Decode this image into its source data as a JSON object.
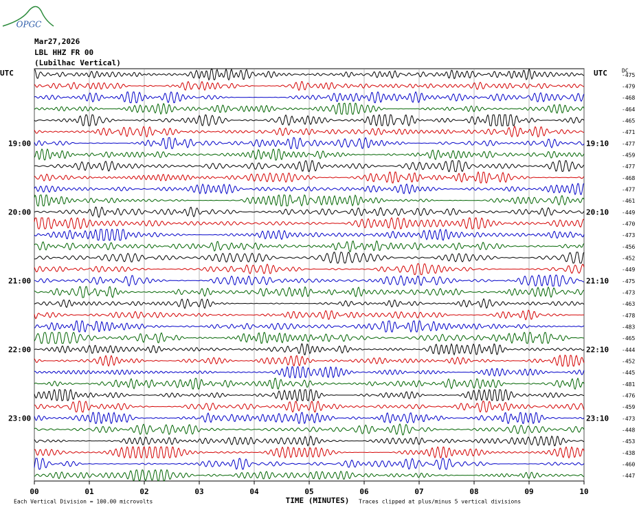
{
  "logo": "OPGC",
  "header": {
    "date": "Mar27,2026",
    "station": "LBL HHZ FR 00",
    "location": "(Lubilhac Vertical)"
  },
  "left_axis": {
    "title": "UTC",
    "labels": [
      {
        "row": 6,
        "label": "19:00"
      },
      {
        "row": 12,
        "label": "20:00"
      },
      {
        "row": 18,
        "label": "21:00"
      },
      {
        "row": 24,
        "label": "22:00"
      },
      {
        "row": 30,
        "label": "23:00"
      }
    ]
  },
  "right_axis": {
    "title": "UTC",
    "offset_title": "DC",
    "labels": [
      {
        "row": 6,
        "label": "19:10"
      },
      {
        "row": 12,
        "label": "20:10"
      },
      {
        "row": 18,
        "label": "21:10"
      },
      {
        "row": 24,
        "label": "22:10"
      },
      {
        "row": 30,
        "label": "23:10"
      }
    ],
    "offsets": [
      "-475",
      "-479",
      "-468",
      "-464",
      "-465",
      "-471",
      "-477",
      "-459",
      "-477",
      "-468",
      "-477",
      "-461",
      "-449",
      "-470",
      "-473",
      "-456",
      "-452",
      "-449",
      "-475",
      "-473",
      "-463",
      "-478",
      "-483",
      "-465",
      "-444",
      "-452",
      "-445",
      "-481",
      "-476",
      "-459",
      "-473",
      "-448",
      "-453",
      "-438",
      "-460",
      "-447"
    ]
  },
  "trace_colors": [
    "#000000",
    "#d40000",
    "#0000c8",
    "#006400"
  ],
  "x_axis": {
    "title": "TIME (MINUTES)",
    "ticks": [
      "00",
      "01",
      "02",
      "03",
      "04",
      "05",
      "06",
      "07",
      "08",
      "09",
      "10"
    ]
  },
  "footer": {
    "scale": "Each Vertical Division =  100.00 microvolts",
    "clip": "Traces clipped at plus/minus 5 vertical divisions"
  }
}
